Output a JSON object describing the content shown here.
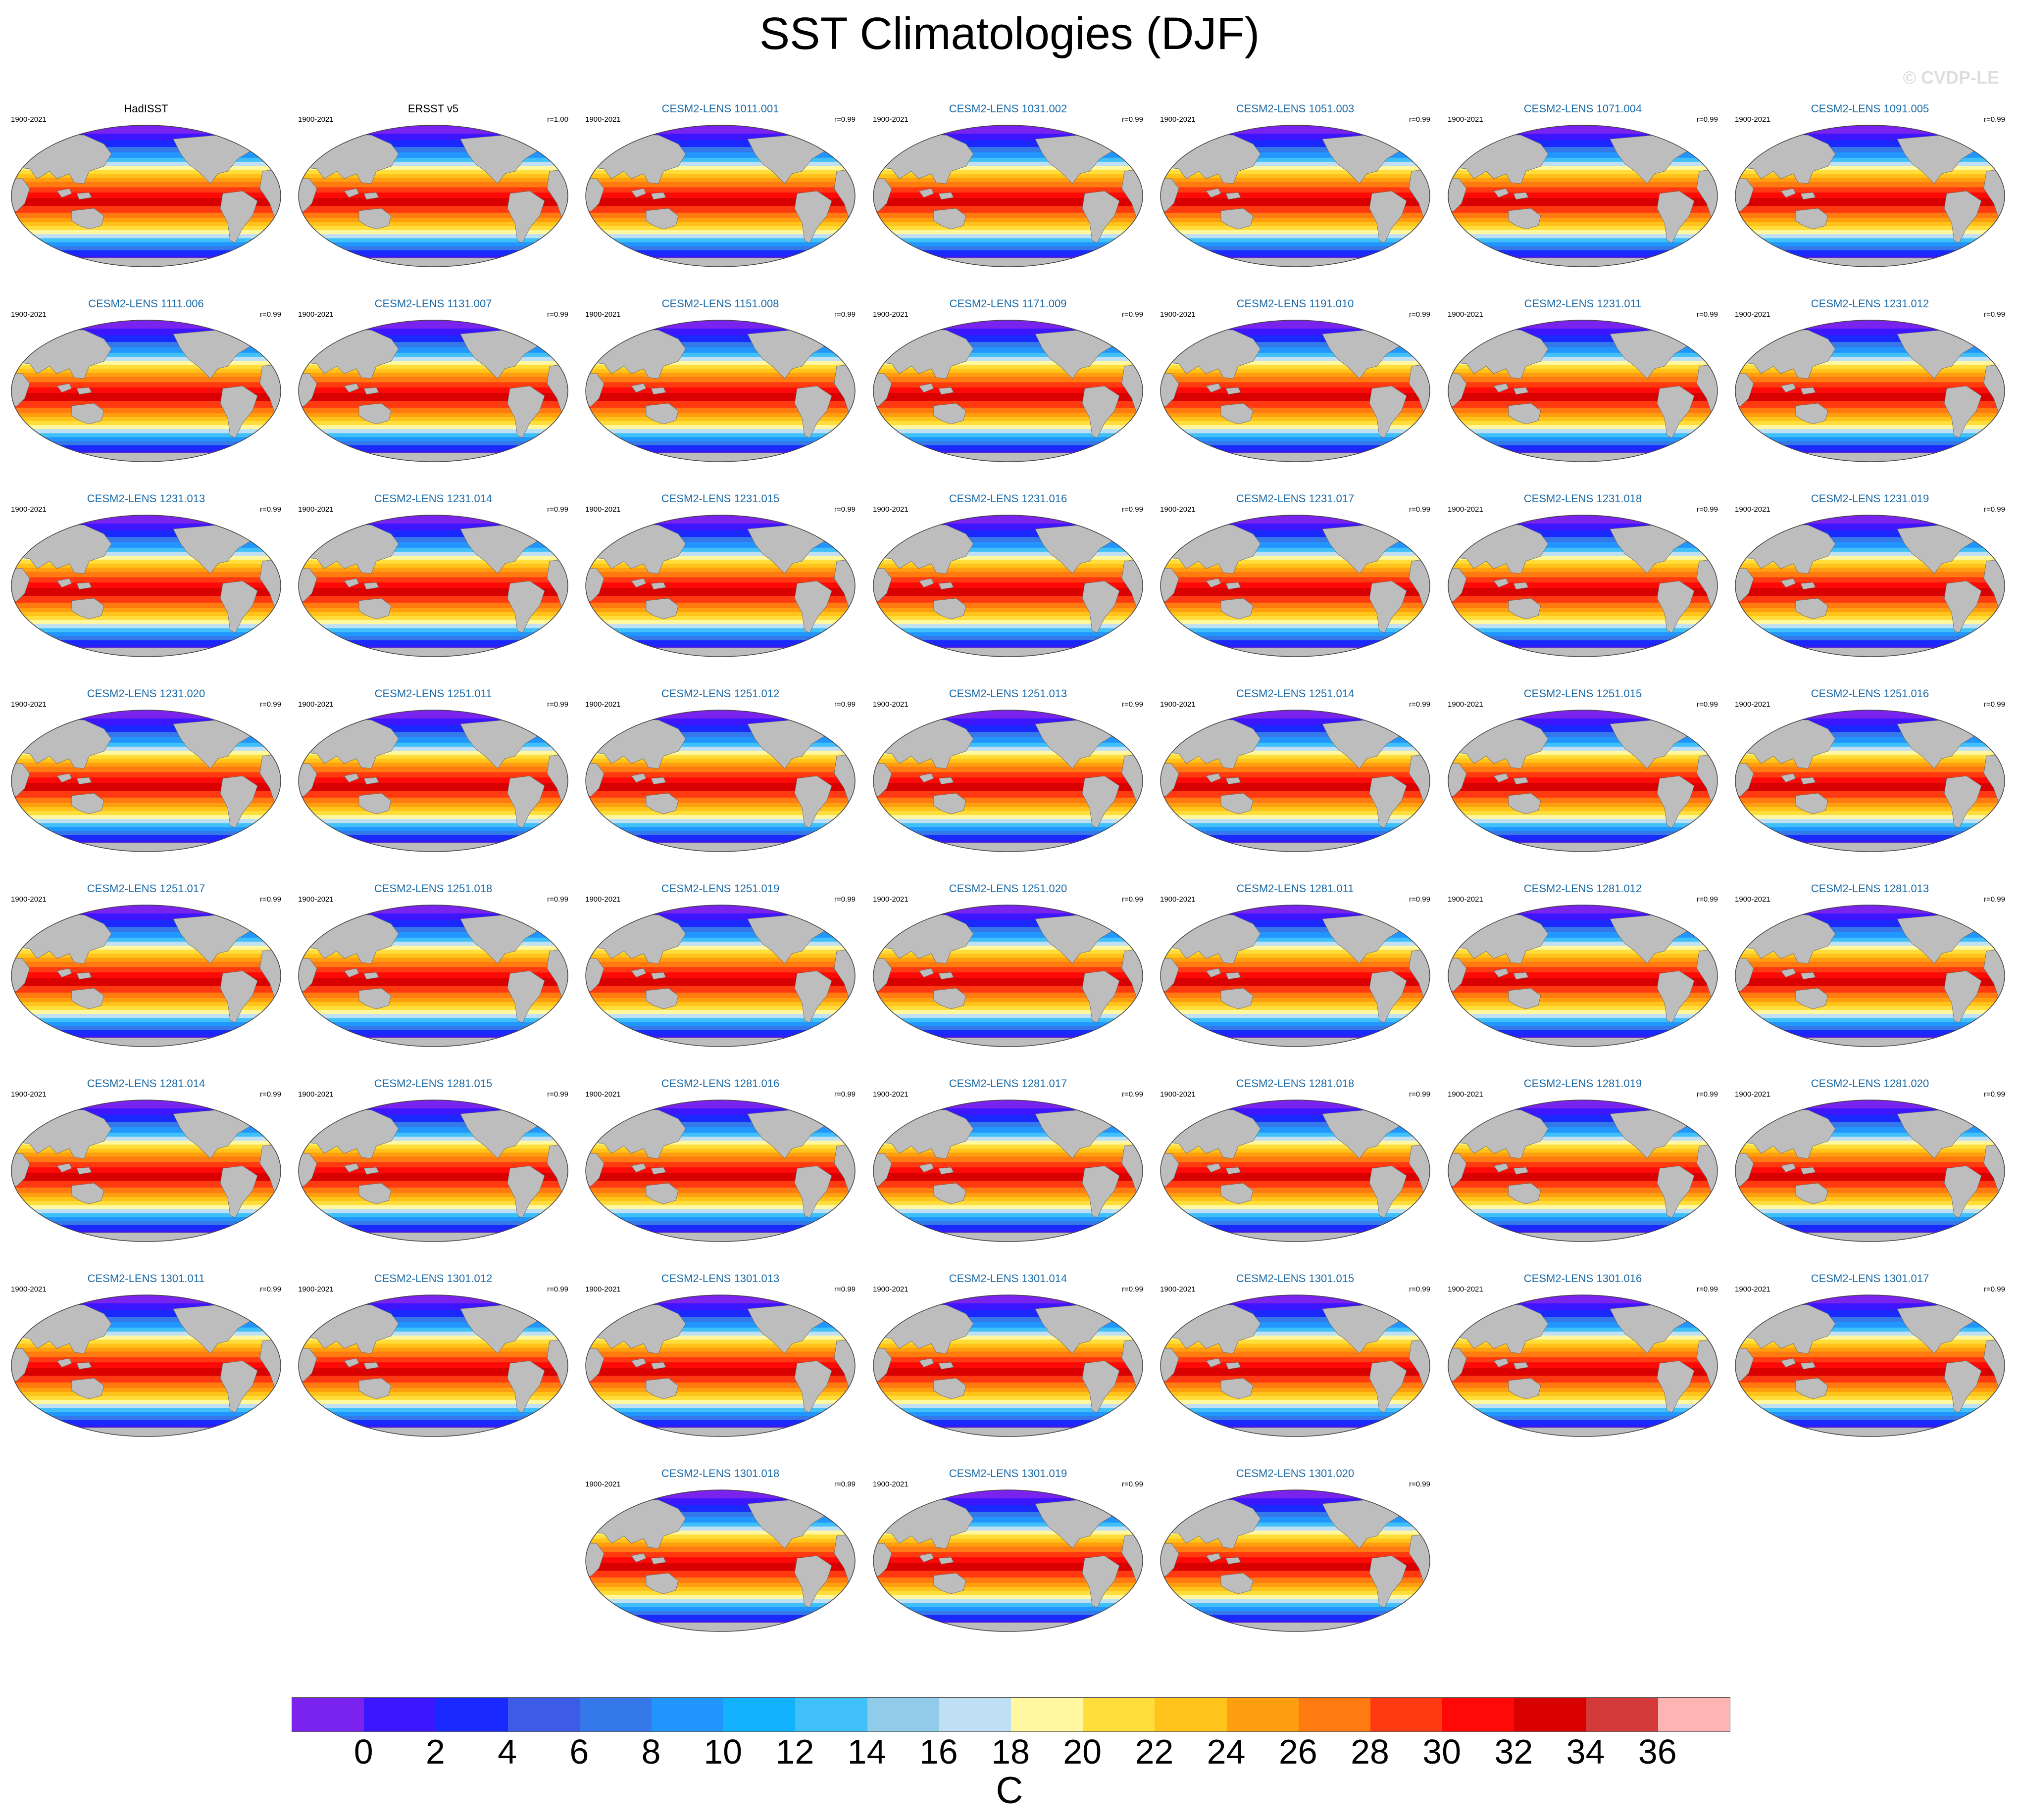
{
  "title": "SST Climatologies (DJF)",
  "credit": "© CVDP-LE",
  "colors": {
    "land": "#bdbdbd",
    "observation_title": "#000000",
    "model_title": "#1a6aa8"
  },
  "panels": [
    {
      "title": "HadISST",
      "years": "1900-2021",
      "corr": "",
      "kind": "obs"
    },
    {
      "title": "ERSST v5",
      "years": "1900-2021",
      "corr": "r=1.00",
      "kind": "obs"
    },
    {
      "title": "CESM2-LENS 1011.001",
      "years": "1900-2021",
      "corr": "r=0.99",
      "kind": "model"
    },
    {
      "title": "CESM2-LENS 1031.002",
      "years": "1900-2021",
      "corr": "r=0.99",
      "kind": "model"
    },
    {
      "title": "CESM2-LENS 1051.003",
      "years": "1900-2021",
      "corr": "r=0.99",
      "kind": "model"
    },
    {
      "title": "CESM2-LENS 1071.004",
      "years": "1900-2021",
      "corr": "r=0.99",
      "kind": "model"
    },
    {
      "title": "CESM2-LENS 1091.005",
      "years": "1900-2021",
      "corr": "r=0.99",
      "kind": "model"
    },
    {
      "title": "CESM2-LENS 1111.006",
      "years": "1900-2021",
      "corr": "r=0.99",
      "kind": "model"
    },
    {
      "title": "CESM2-LENS 1131.007",
      "years": "1900-2021",
      "corr": "r=0.99",
      "kind": "model"
    },
    {
      "title": "CESM2-LENS 1151.008",
      "years": "1900-2021",
      "corr": "r=0.99",
      "kind": "model"
    },
    {
      "title": "CESM2-LENS 1171.009",
      "years": "1900-2021",
      "corr": "r=0.99",
      "kind": "model"
    },
    {
      "title": "CESM2-LENS 1191.010",
      "years": "1900-2021",
      "corr": "r=0.99",
      "kind": "model"
    },
    {
      "title": "CESM2-LENS 1231.011",
      "years": "1900-2021",
      "corr": "r=0.99",
      "kind": "model"
    },
    {
      "title": "CESM2-LENS 1231.012",
      "years": "1900-2021",
      "corr": "r=0.99",
      "kind": "model"
    },
    {
      "title": "CESM2-LENS 1231.013",
      "years": "1900-2021",
      "corr": "r=0.99",
      "kind": "model"
    },
    {
      "title": "CESM2-LENS 1231.014",
      "years": "1900-2021",
      "corr": "r=0.99",
      "kind": "model"
    },
    {
      "title": "CESM2-LENS 1231.015",
      "years": "1900-2021",
      "corr": "r=0.99",
      "kind": "model"
    },
    {
      "title": "CESM2-LENS 1231.016",
      "years": "1900-2021",
      "corr": "r=0.99",
      "kind": "model"
    },
    {
      "title": "CESM2-LENS 1231.017",
      "years": "1900-2021",
      "corr": "r=0.99",
      "kind": "model"
    },
    {
      "title": "CESM2-LENS 1231.018",
      "years": "1900-2021",
      "corr": "r=0.99",
      "kind": "model"
    },
    {
      "title": "CESM2-LENS 1231.019",
      "years": "1900-2021",
      "corr": "r=0.99",
      "kind": "model"
    },
    {
      "title": "CESM2-LENS 1231.020",
      "years": "1900-2021",
      "corr": "r=0.99",
      "kind": "model"
    },
    {
      "title": "CESM2-LENS 1251.011",
      "years": "1900-2021",
      "corr": "r=0.99",
      "kind": "model"
    },
    {
      "title": "CESM2-LENS 1251.012",
      "years": "1900-2021",
      "corr": "r=0.99",
      "kind": "model"
    },
    {
      "title": "CESM2-LENS 1251.013",
      "years": "1900-2021",
      "corr": "r=0.99",
      "kind": "model"
    },
    {
      "title": "CESM2-LENS 1251.014",
      "years": "1900-2021",
      "corr": "r=0.99",
      "kind": "model"
    },
    {
      "title": "CESM2-LENS 1251.015",
      "years": "1900-2021",
      "corr": "r=0.99",
      "kind": "model"
    },
    {
      "title": "CESM2-LENS 1251.016",
      "years": "1900-2021",
      "corr": "r=0.99",
      "kind": "model"
    },
    {
      "title": "CESM2-LENS 1251.017",
      "years": "1900-2021",
      "corr": "r=0.99",
      "kind": "model"
    },
    {
      "title": "CESM2-LENS 1251.018",
      "years": "1900-2021",
      "corr": "r=0.99",
      "kind": "model"
    },
    {
      "title": "CESM2-LENS 1251.019",
      "years": "1900-2021",
      "corr": "r=0.99",
      "kind": "model"
    },
    {
      "title": "CESM2-LENS 1251.020",
      "years": "1900-2021",
      "corr": "r=0.99",
      "kind": "model"
    },
    {
      "title": "CESM2-LENS 1281.011",
      "years": "1900-2021",
      "corr": "r=0.99",
      "kind": "model"
    },
    {
      "title": "CESM2-LENS 1281.012",
      "years": "1900-2021",
      "corr": "r=0.99",
      "kind": "model"
    },
    {
      "title": "CESM2-LENS 1281.013",
      "years": "1900-2021",
      "corr": "r=0.99",
      "kind": "model"
    },
    {
      "title": "CESM2-LENS 1281.014",
      "years": "1900-2021",
      "corr": "r=0.99",
      "kind": "model"
    },
    {
      "title": "CESM2-LENS 1281.015",
      "years": "1900-2021",
      "corr": "r=0.99",
      "kind": "model"
    },
    {
      "title": "CESM2-LENS 1281.016",
      "years": "1900-2021",
      "corr": "r=0.99",
      "kind": "model"
    },
    {
      "title": "CESM2-LENS 1281.017",
      "years": "1900-2021",
      "corr": "r=0.99",
      "kind": "model"
    },
    {
      "title": "CESM2-LENS 1281.018",
      "years": "1900-2021",
      "corr": "r=0.99",
      "kind": "model"
    },
    {
      "title": "CESM2-LENS 1281.019",
      "years": "1900-2021",
      "corr": "r=0.99",
      "kind": "model"
    },
    {
      "title": "CESM2-LENS 1281.020",
      "years": "1900-2021",
      "corr": "r=0.99",
      "kind": "model"
    },
    {
      "title": "CESM2-LENS 1301.011",
      "years": "1900-2021",
      "corr": "r=0.99",
      "kind": "model"
    },
    {
      "title": "CESM2-LENS 1301.012",
      "years": "1900-2021",
      "corr": "r=0.99",
      "kind": "model"
    },
    {
      "title": "CESM2-LENS 1301.013",
      "years": "1900-2021",
      "corr": "r=0.99",
      "kind": "model"
    },
    {
      "title": "CESM2-LENS 1301.014",
      "years": "1900-2021",
      "corr": "r=0.99",
      "kind": "model"
    },
    {
      "title": "CESM2-LENS 1301.015",
      "years": "1900-2021",
      "corr": "r=0.99",
      "kind": "model"
    },
    {
      "title": "CESM2-LENS 1301.016",
      "years": "1900-2021",
      "corr": "r=0.99",
      "kind": "model"
    },
    {
      "title": "CESM2-LENS 1301.017",
      "years": "1900-2021",
      "corr": "r=0.99",
      "kind": "model"
    },
    {
      "title": "CESM2-LENS 1301.018",
      "years": "1900-2021",
      "corr": "r=0.99",
      "kind": "model"
    },
    {
      "title": "CESM2-LENS 1301.019",
      "years": "1900-2021",
      "corr": "r=0.99",
      "kind": "model"
    },
    {
      "title": "CESM2-LENS 1301.020",
      "years": "",
      "corr": "r=0.99",
      "kind": "model"
    }
  ],
  "colorbar": {
    "unit": "C",
    "tick_labels": [
      "0",
      "2",
      "4",
      "6",
      "8",
      "10",
      "12",
      "14",
      "16",
      "18",
      "20",
      "22",
      "24",
      "26",
      "28",
      "30",
      "32",
      "34",
      "36"
    ],
    "colors": [
      "#7a22ee",
      "#3b16ff",
      "#1a2aff",
      "#3c5ce8",
      "#3478ea",
      "#2196ff",
      "#12b2ff",
      "#40c0f8",
      "#90cbea",
      "#bfe0f4",
      "#fff8a0",
      "#ffde3c",
      "#ffc31a",
      "#ff9f10",
      "#ff7a10",
      "#ff3a10",
      "#ff0808",
      "#d80000",
      "#d43a3a",
      "#ffb4b4"
    ]
  }
}
